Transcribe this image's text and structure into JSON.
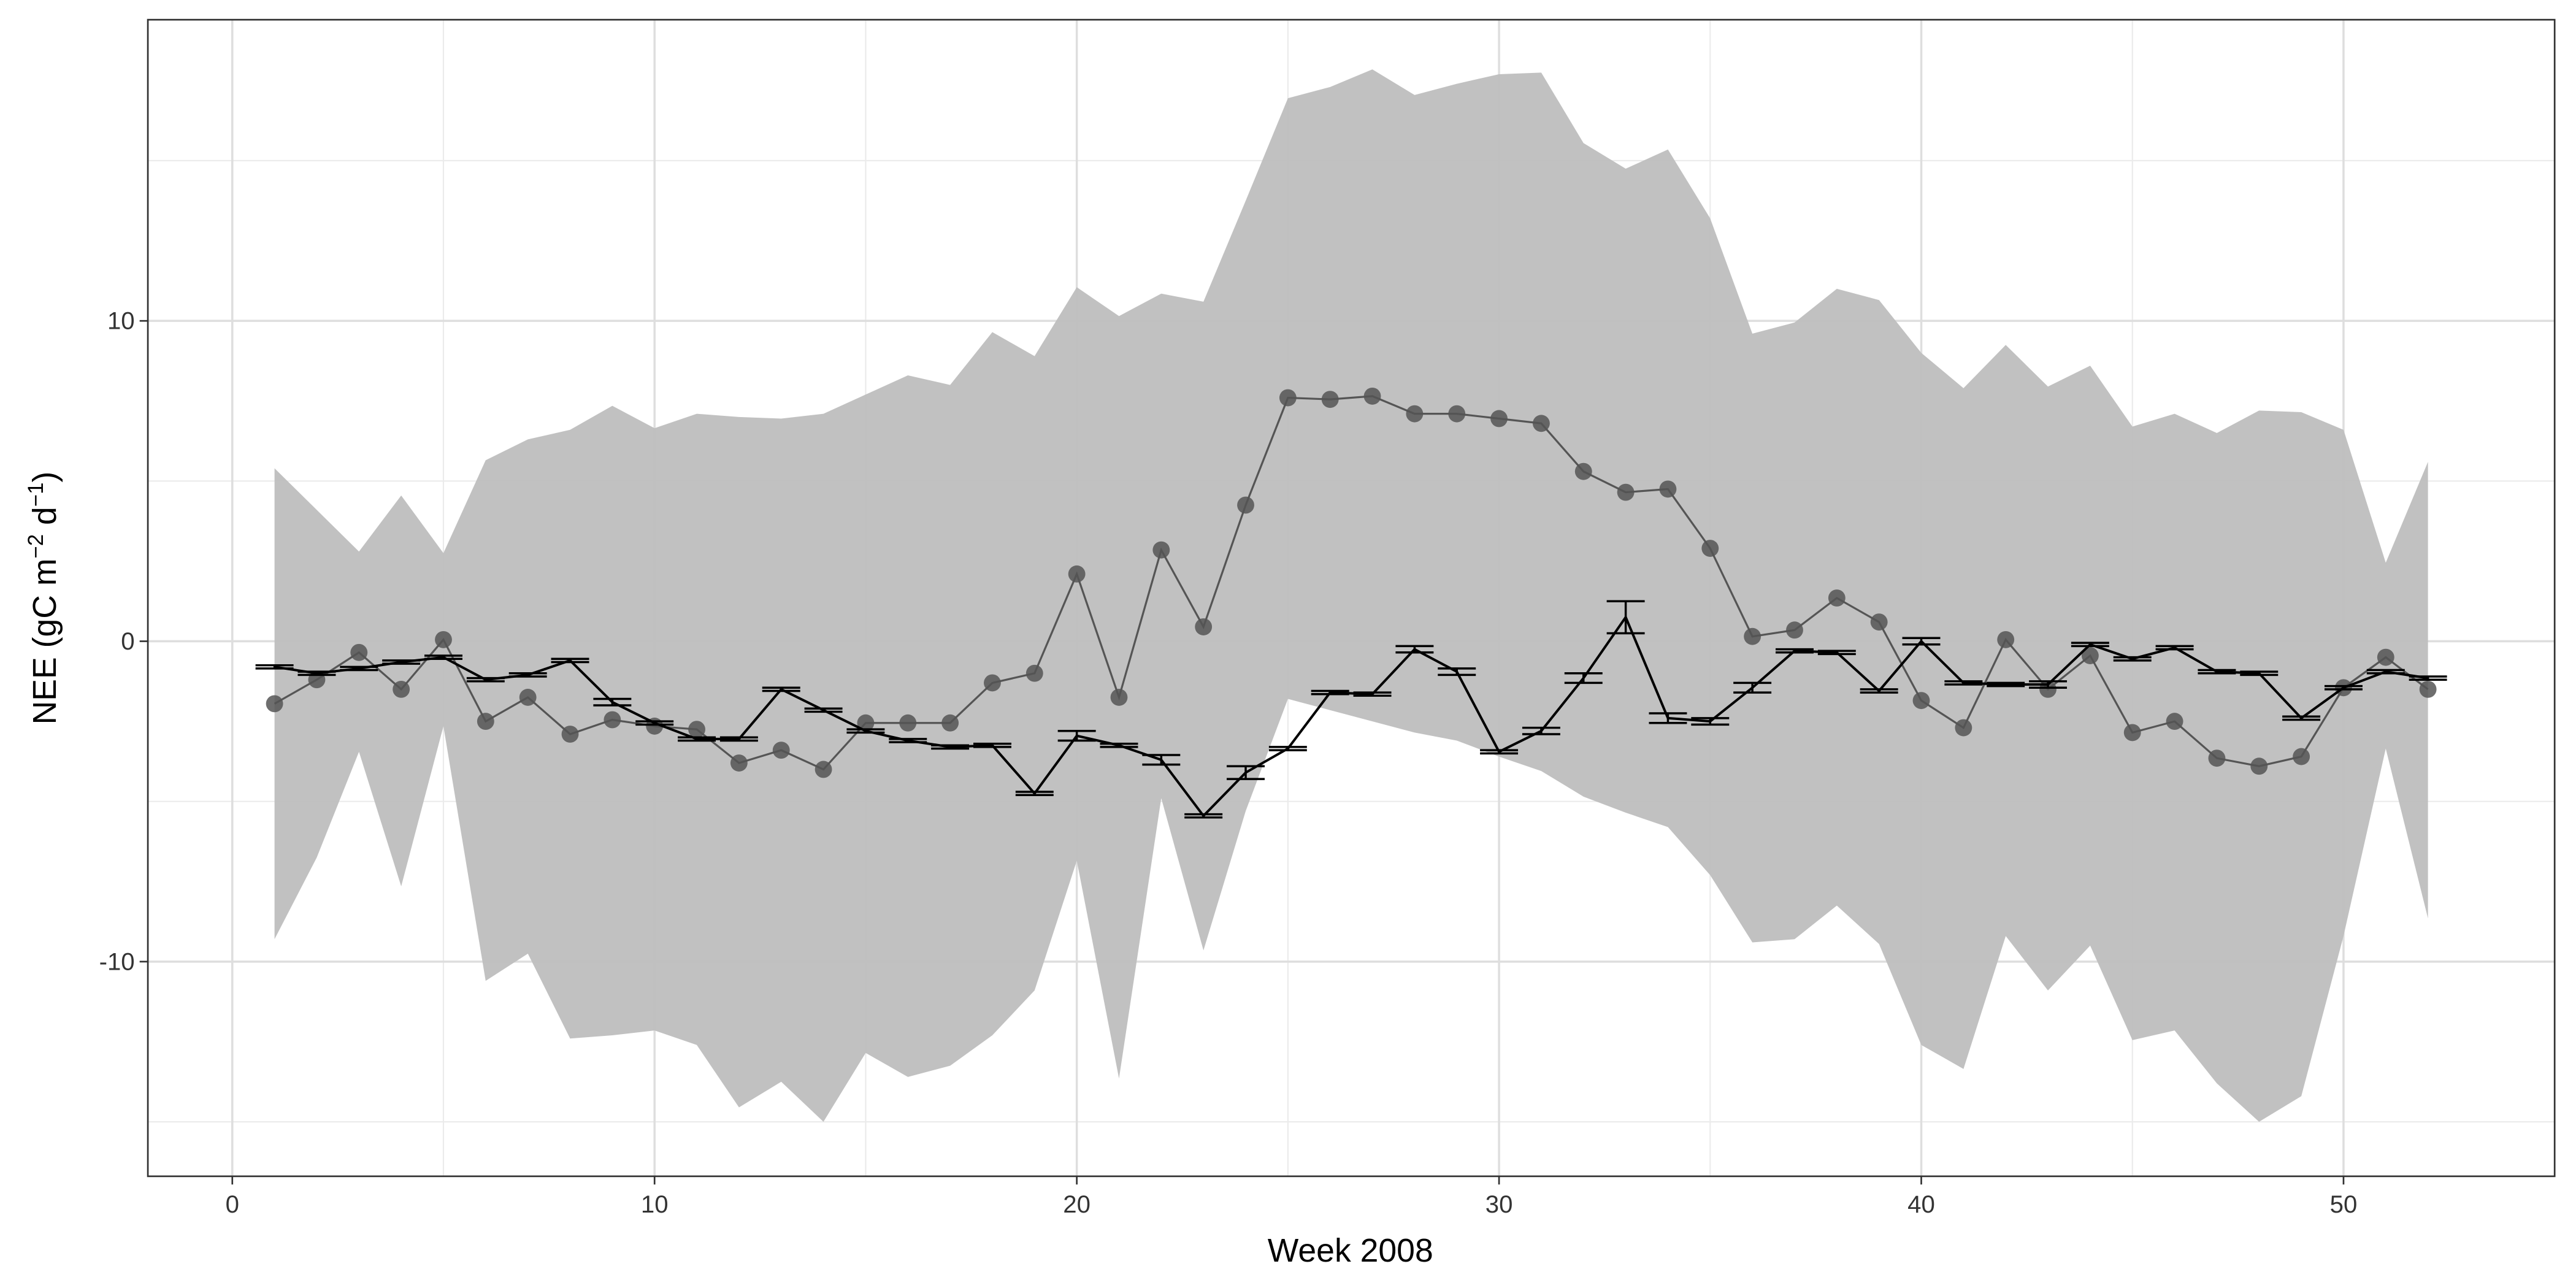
{
  "chart_data": {
    "type": "ribbon-line",
    "x_label": "Week 2008",
    "y_label": [
      "NEE (gC m",
      "−2",
      " d",
      "−1",
      ")"
    ],
    "x": [
      1,
      2,
      3,
      4,
      5,
      6,
      7,
      8,
      9,
      10,
      11,
      12,
      13,
      14,
      15,
      16,
      17,
      18,
      19,
      20,
      21,
      22,
      23,
      24,
      25,
      26,
      27,
      28,
      29,
      30,
      31,
      32,
      33,
      34,
      35,
      36,
      37,
      38,
      39,
      40,
      41,
      42,
      43,
      44,
      45,
      46,
      47,
      48,
      49,
      50,
      51,
      52
    ],
    "ribbon": {
      "color": "#bebebe",
      "lower": [
        -9.3,
        -6.75,
        -3.45,
        -7.65,
        -2.65,
        -10.6,
        -9.75,
        -12.4,
        -12.3,
        -12.15,
        -12.6,
        -14.55,
        -13.75,
        -15.0,
        -12.85,
        -13.6,
        -13.25,
        -12.3,
        -10.9,
        -6.85,
        -13.65,
        -4.9,
        -9.65,
        -5.3,
        -1.8,
        -2.15,
        -2.5,
        -2.85,
        -3.1,
        -3.6,
        -4.05,
        -4.85,
        -5.35,
        -5.8,
        -7.3,
        -9.4,
        -9.3,
        -8.25,
        -9.45,
        -12.6,
        -13.35,
        -9.2,
        -10.9,
        -9.5,
        -12.45,
        -12.15,
        -13.8,
        -15.0,
        -14.2,
        -9.2,
        -3.35,
        -8.65
      ],
      "upper": [
        5.4,
        4.1,
        2.8,
        4.55,
        2.75,
        5.65,
        6.3,
        6.6,
        7.35,
        6.65,
        7.1,
        7.0,
        6.95,
        7.1,
        7.7,
        8.3,
        8.0,
        9.65,
        8.9,
        11.05,
        10.15,
        10.85,
        10.6,
        13.75,
        16.95,
        17.3,
        17.85,
        17.05,
        17.4,
        17.7,
        17.75,
        15.55,
        14.75,
        15.35,
        13.2,
        9.6,
        9.95,
        11.0,
        10.65,
        9.0,
        7.9,
        9.25,
        7.95,
        8.6,
        6.7,
        7.1,
        6.5,
        7.2,
        7.15,
        6.6,
        2.45,
        5.6
      ]
    },
    "series": [
      {
        "color": "#555555",
        "marker": true,
        "values": [
          -1.95,
          -1.2,
          -0.35,
          -1.5,
          0.05,
          -2.5,
          -1.75,
          -2.9,
          -2.45,
          -2.65,
          -2.75,
          -3.8,
          -3.4,
          -4.0,
          -2.55,
          -2.55,
          -2.55,
          -1.3,
          -1.0,
          2.1,
          -1.75,
          2.85,
          0.45,
          4.25,
          7.6,
          7.55,
          7.65,
          7.1,
          7.1,
          6.95,
          6.8,
          5.3,
          4.65,
          4.75,
          2.9,
          0.15,
          0.35,
          1.35,
          0.6,
          -1.85,
          -2.7,
          0.05,
          -1.5,
          -0.45,
          -2.85,
          -2.5,
          -3.65,
          -3.9,
          -3.6,
          -1.45,
          -0.5,
          -1.5
        ]
      },
      {
        "color": "#000000",
        "marker": false,
        "values": [
          -0.8,
          -1.0,
          -0.85,
          -0.65,
          -0.5,
          -1.2,
          -1.05,
          -0.6,
          -1.9,
          -2.55,
          -3.05,
          -3.05,
          -1.5,
          -2.15,
          -2.8,
          -3.1,
          -3.3,
          -3.25,
          -4.75,
          -2.95,
          -3.25,
          -3.7,
          -5.45,
          -4.1,
          -3.35,
          -1.6,
          -1.65,
          -0.25,
          -0.95,
          -3.45,
          -2.8,
          -1.15,
          0.75,
          -2.4,
          -2.5,
          -1.45,
          -0.3,
          -0.35,
          -1.55,
          0.0,
          -1.3,
          -1.35,
          -1.35,
          -0.1,
          -0.55,
          -0.2,
          -0.95,
          -1.0,
          -2.4,
          -1.45,
          -0.95,
          -1.15
        ],
        "errors": [
          0.05,
          0.05,
          0.05,
          0.05,
          0.05,
          0.05,
          0.05,
          0.05,
          0.1,
          0.05,
          0.05,
          0.05,
          0.05,
          0.05,
          0.05,
          0.05,
          0.05,
          0.05,
          0.05,
          0.15,
          0.05,
          0.15,
          0.05,
          0.2,
          0.05,
          0.05,
          0.05,
          0.1,
          0.1,
          0.05,
          0.1,
          0.15,
          0.5,
          0.15,
          0.1,
          0.15,
          0.05,
          0.05,
          0.05,
          0.1,
          0.05,
          0.05,
          0.1,
          0.05,
          0.05,
          0.05,
          0.05,
          0.05,
          0.05,
          0.05,
          0.05,
          0.05
        ]
      }
    ],
    "xlim": [
      -2,
      55
    ],
    "ylim": [
      -16.7,
      19.4
    ],
    "xticks": [
      0,
      10,
      20,
      30,
      40,
      50
    ],
    "yticks": [
      -10,
      0,
      10
    ],
    "x_minor_ticks": [
      5,
      15,
      25,
      35,
      45
    ],
    "y_minor_ticks": [
      -15,
      -5,
      5,
      15
    ],
    "grid": true
  }
}
